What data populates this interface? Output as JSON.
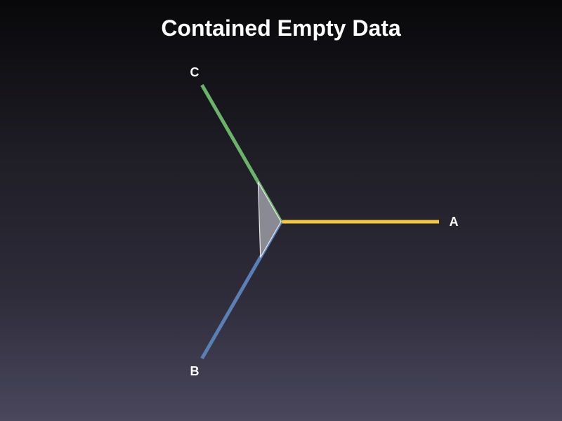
{
  "chart_data": {
    "type": "radar",
    "title": "Contained Empty Data",
    "axes": [
      "A",
      "B",
      "C"
    ],
    "axis_colors": [
      "#f5c842",
      "#5a7fb5",
      "#6db26a"
    ],
    "range": [
      0,
      1
    ],
    "series": [
      {
        "values": [
          0,
          0.26,
          0.29
        ],
        "fill": "#8a8a94",
        "stroke": "#e8e8e8"
      }
    ]
  }
}
